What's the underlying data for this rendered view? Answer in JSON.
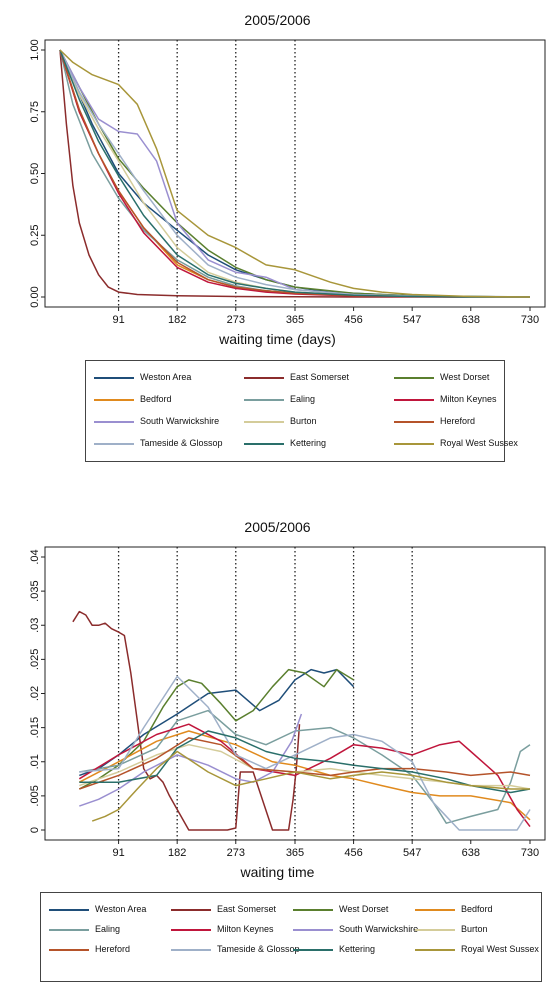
{
  "chart_data": [
    {
      "type": "line",
      "title": "2005/2006",
      "xlabel": "waiting time (days)",
      "ylabel": "",
      "xlim": [
        0,
        730
      ],
      "ylim": [
        0,
        1
      ],
      "xticks": [
        "91",
        "182",
        "273",
        "365",
        "456",
        "547",
        "638",
        "730"
      ],
      "yticks": [
        "0.00",
        "0.25",
        "0.50",
        "0.75",
        "1.00"
      ],
      "reference_lines_x": [
        91,
        182,
        273,
        365
      ],
      "grid": false,
      "legend_position": "bottom",
      "series": [
        {
          "name": "Weston Area",
          "color": "#1f4e79",
          "x": [
            0,
            20,
            50,
            91,
            130,
            182,
            230,
            273,
            320,
            365,
            420,
            456,
            547,
            638,
            730
          ],
          "y": [
            1.0,
            0.88,
            0.7,
            0.5,
            0.38,
            0.27,
            0.17,
            0.11,
            0.07,
            0.04,
            0.02,
            0.015,
            0.005,
            0.002,
            0.001
          ]
        },
        {
          "name": "East Somerset",
          "color": "#8b2c2c",
          "x": [
            0,
            5,
            10,
            20,
            30,
            45,
            60,
            75,
            91,
            120,
            182,
            273,
            365,
            456,
            547,
            638,
            730
          ],
          "y": [
            1.0,
            0.85,
            0.7,
            0.45,
            0.3,
            0.17,
            0.09,
            0.04,
            0.02,
            0.01,
            0.005,
            0.002,
            0.001,
            0.0,
            0.0,
            0.0,
            0.0
          ]
        },
        {
          "name": "West Dorset",
          "color": "#5a7f2e",
          "x": [
            0,
            30,
            60,
            91,
            130,
            182,
            230,
            273,
            320,
            365,
            456,
            547,
            638,
            730
          ],
          "y": [
            1.0,
            0.85,
            0.7,
            0.56,
            0.44,
            0.3,
            0.19,
            0.12,
            0.07,
            0.04,
            0.015,
            0.005,
            0.002,
            0.0
          ]
        },
        {
          "name": "Bedford",
          "color": "#e08a1e",
          "x": [
            0,
            30,
            60,
            91,
            130,
            182,
            230,
            273,
            320,
            365,
            456,
            547,
            638,
            730
          ],
          "y": [
            1.0,
            0.75,
            0.58,
            0.43,
            0.28,
            0.13,
            0.07,
            0.04,
            0.025,
            0.015,
            0.005,
            0.002,
            0.0,
            0.0
          ]
        },
        {
          "name": "Ealing",
          "color": "#7a9e9e",
          "x": [
            0,
            20,
            50,
            91,
            130,
            182,
            230,
            273,
            320,
            365,
            456,
            547,
            638,
            730
          ],
          "y": [
            1.0,
            0.78,
            0.58,
            0.4,
            0.27,
            0.15,
            0.08,
            0.045,
            0.025,
            0.015,
            0.005,
            0.002,
            0.0,
            0.0
          ]
        },
        {
          "name": "Milton Keynes",
          "color": "#c0163c",
          "x": [
            0,
            30,
            60,
            91,
            130,
            182,
            230,
            273,
            320,
            365,
            456,
            547,
            638,
            730
          ],
          "y": [
            1.0,
            0.75,
            0.58,
            0.42,
            0.26,
            0.12,
            0.06,
            0.035,
            0.02,
            0.012,
            0.004,
            0.001,
            0.0,
            0.0
          ]
        },
        {
          "name": "South Warwickshire",
          "color": "#9a8fd0",
          "x": [
            0,
            30,
            60,
            91,
            120,
            150,
            182,
            230,
            273,
            320,
            365,
            456,
            547,
            638,
            730
          ],
          "y": [
            1.0,
            0.85,
            0.72,
            0.67,
            0.66,
            0.55,
            0.3,
            0.15,
            0.1,
            0.08,
            0.03,
            0.01,
            0.003,
            0.0,
            0.0
          ]
        },
        {
          "name": "Burton",
          "color": "#d4cc9a",
          "x": [
            0,
            30,
            60,
            91,
            130,
            182,
            230,
            273,
            320,
            365,
            456,
            547,
            638,
            730
          ],
          "y": [
            1.0,
            0.82,
            0.68,
            0.55,
            0.38,
            0.2,
            0.1,
            0.06,
            0.035,
            0.02,
            0.008,
            0.003,
            0.0,
            0.0
          ]
        },
        {
          "name": "Hereford",
          "color": "#b5532a",
          "x": [
            0,
            30,
            60,
            91,
            130,
            182,
            230,
            273,
            320,
            365,
            456,
            547,
            638,
            730
          ],
          "y": [
            1.0,
            0.76,
            0.58,
            0.43,
            0.28,
            0.14,
            0.07,
            0.04,
            0.025,
            0.015,
            0.005,
            0.002,
            0.0,
            0.0
          ]
        },
        {
          "name": "Tameside & Glossop",
          "color": "#9fb0c8",
          "x": [
            0,
            30,
            60,
            91,
            130,
            182,
            230,
            273,
            320,
            365,
            456,
            547,
            638,
            730
          ],
          "y": [
            1.0,
            0.83,
            0.7,
            0.58,
            0.43,
            0.25,
            0.13,
            0.08,
            0.05,
            0.03,
            0.01,
            0.004,
            0.0,
            0.0
          ]
        },
        {
          "name": "Kettering",
          "color": "#2a6f6a",
          "x": [
            0,
            30,
            60,
            91,
            130,
            182,
            230,
            273,
            320,
            365,
            456,
            547,
            638,
            730
          ],
          "y": [
            1.0,
            0.8,
            0.63,
            0.49,
            0.33,
            0.17,
            0.09,
            0.055,
            0.035,
            0.02,
            0.007,
            0.002,
            0.0,
            0.0
          ]
        },
        {
          "name": "Royal West Sussex",
          "color": "#a8963a",
          "x": [
            0,
            20,
            50,
            91,
            120,
            150,
            182,
            230,
            273,
            320,
            365,
            420,
            456,
            500,
            547,
            638,
            730
          ],
          "y": [
            1.0,
            0.95,
            0.9,
            0.86,
            0.78,
            0.6,
            0.35,
            0.25,
            0.2,
            0.13,
            0.11,
            0.06,
            0.035,
            0.02,
            0.01,
            0.002,
            0.0
          ]
        }
      ]
    },
    {
      "type": "line",
      "title": "2005/2006",
      "xlabel": "waiting time",
      "ylabel": "",
      "xlim": [
        0,
        730
      ],
      "ylim": [
        0,
        0.04
      ],
      "xticks": [
        "91",
        "182",
        "273",
        "365",
        "456",
        "547",
        "638",
        "730"
      ],
      "yticks": [
        "0",
        ".005",
        ".01",
        ".015",
        ".02",
        ".025",
        ".03",
        ".035",
        ".04"
      ],
      "reference_lines_x": [
        91,
        182,
        273,
        365,
        456,
        547
      ],
      "grid": false,
      "legend_position": "bottom",
      "series": [
        {
          "name": "Weston Area",
          "color": "#1f4e79",
          "x": [
            30,
            60,
            91,
            130,
            182,
            230,
            273,
            310,
            340,
            365,
            390,
            410,
            430,
            456
          ],
          "y": [
            0.008,
            0.009,
            0.011,
            0.014,
            0.017,
            0.02,
            0.0205,
            0.0175,
            0.019,
            0.022,
            0.0235,
            0.023,
            0.0235,
            0.021
          ]
        },
        {
          "name": "East Somerset",
          "color": "#8b2c2c",
          "x": [
            20,
            30,
            40,
            50,
            60,
            70,
            80,
            91,
            100,
            110,
            120,
            130,
            140,
            150,
            160,
            170,
            182,
            200,
            230,
            260,
            273,
            280,
            300,
            330,
            355,
            362,
            367,
            372
          ],
          "y": [
            0.0305,
            0.032,
            0.0315,
            0.03,
            0.03,
            0.0303,
            0.0295,
            0.029,
            0.0285,
            0.023,
            0.016,
            0.009,
            0.0075,
            0.008,
            0.007,
            0.005,
            0.003,
            0.0,
            0.0,
            0.0,
            0.0003,
            0.0085,
            0.0085,
            0.0,
            0.0,
            0.0045,
            0.009,
            0.0155
          ]
        },
        {
          "name": "West Dorset",
          "color": "#5a7f2e",
          "x": [
            30,
            60,
            91,
            130,
            160,
            182,
            200,
            220,
            250,
            273,
            300,
            330,
            355,
            380,
            410,
            430,
            456
          ],
          "y": [
            0.006,
            0.0075,
            0.0095,
            0.013,
            0.018,
            0.021,
            0.022,
            0.0215,
            0.0185,
            0.016,
            0.0175,
            0.021,
            0.0235,
            0.023,
            0.021,
            0.0235,
            0.022
          ]
        },
        {
          "name": "Bedford",
          "color": "#e08a1e",
          "x": [
            30,
            91,
            150,
            200,
            273,
            330,
            365,
            420,
            456,
            500,
            547,
            590,
            638,
            700,
            730
          ],
          "y": [
            0.007,
            0.01,
            0.013,
            0.0145,
            0.0125,
            0.01,
            0.0095,
            0.008,
            0.0075,
            0.0065,
            0.0055,
            0.005,
            0.005,
            0.004,
            0.0015
          ]
        },
        {
          "name": "Ealing",
          "color": "#7a9e9e",
          "x": [
            30,
            91,
            150,
            182,
            230,
            273,
            320,
            365,
            420,
            456,
            500,
            547,
            580,
            600,
            638,
            680,
            700,
            715,
            730
          ],
          "y": [
            0.0085,
            0.0095,
            0.012,
            0.016,
            0.0175,
            0.014,
            0.0125,
            0.0145,
            0.015,
            0.0135,
            0.011,
            0.008,
            0.004,
            0.001,
            0.002,
            0.003,
            0.007,
            0.0115,
            0.0125
          ]
        },
        {
          "name": "Milton Keynes",
          "color": "#c0163c",
          "x": [
            30,
            91,
            150,
            200,
            250,
            300,
            365,
            420,
            456,
            500,
            547,
            590,
            620,
            638,
            680,
            710,
            730
          ],
          "y": [
            0.0075,
            0.011,
            0.014,
            0.0155,
            0.013,
            0.009,
            0.008,
            0.0105,
            0.0125,
            0.012,
            0.011,
            0.0125,
            0.013,
            0.0115,
            0.008,
            0.003,
            0.0005
          ]
        },
        {
          "name": "South Warwickshire",
          "color": "#9a8fd0",
          "x": [
            30,
            60,
            91,
            130,
            182,
            230,
            273,
            300,
            330,
            360,
            375
          ],
          "y": [
            0.0035,
            0.0045,
            0.006,
            0.0085,
            0.011,
            0.0095,
            0.0075,
            0.007,
            0.0085,
            0.013,
            0.017
          ]
        },
        {
          "name": "Burton",
          "color": "#d4cc9a",
          "x": [
            30,
            91,
            150,
            200,
            250,
            300,
            365,
            420,
            456,
            500,
            547,
            600,
            638,
            700,
            730
          ],
          "y": [
            0.0065,
            0.0085,
            0.011,
            0.0125,
            0.0115,
            0.009,
            0.0085,
            0.009,
            0.0085,
            0.008,
            0.0075,
            0.007,
            0.0065,
            0.0065,
            0.006
          ]
        },
        {
          "name": "Hereford",
          "color": "#b5532a",
          "x": [
            30,
            91,
            150,
            200,
            250,
            300,
            365,
            420,
            456,
            500,
            547,
            600,
            638,
            700,
            730
          ],
          "y": [
            0.006,
            0.008,
            0.0105,
            0.0135,
            0.0125,
            0.009,
            0.0085,
            0.008,
            0.0085,
            0.009,
            0.009,
            0.0085,
            0.008,
            0.0085,
            0.008
          ]
        },
        {
          "name": "Tameside & Glossop",
          "color": "#9fb0c8",
          "x": [
            30,
            91,
            130,
            182,
            230,
            273,
            320,
            365,
            420,
            456,
            500,
            547,
            580,
            620,
            638,
            680,
            710,
            730
          ],
          "y": [
            0.0085,
            0.009,
            0.015,
            0.0225,
            0.018,
            0.011,
            0.009,
            0.011,
            0.0135,
            0.014,
            0.013,
            0.01,
            0.004,
            0.0,
            0.0,
            0.0,
            0.0,
            0.003
          ]
        },
        {
          "name": "Kettering",
          "color": "#2a6f6a",
          "x": [
            30,
            91,
            150,
            182,
            230,
            273,
            320,
            365,
            420,
            456,
            500,
            547,
            600,
            638,
            700,
            730
          ],
          "y": [
            0.007,
            0.007,
            0.008,
            0.012,
            0.0145,
            0.0135,
            0.0115,
            0.0105,
            0.01,
            0.0095,
            0.009,
            0.0085,
            0.0075,
            0.0065,
            0.0055,
            0.006
          ]
        },
        {
          "name": "Royal West Sussex",
          "color": "#a8963a",
          "x": [
            50,
            70,
            91,
            120,
            150,
            182,
            230,
            273,
            320,
            365,
            420,
            456,
            500,
            547,
            600,
            638,
            700,
            730
          ],
          "y": [
            0.0013,
            0.002,
            0.003,
            0.006,
            0.009,
            0.0115,
            0.0085,
            0.0065,
            0.0075,
            0.0085,
            0.0075,
            0.008,
            0.0085,
            0.008,
            0.007,
            0.0065,
            0.006,
            0.006
          ]
        }
      ]
    }
  ]
}
